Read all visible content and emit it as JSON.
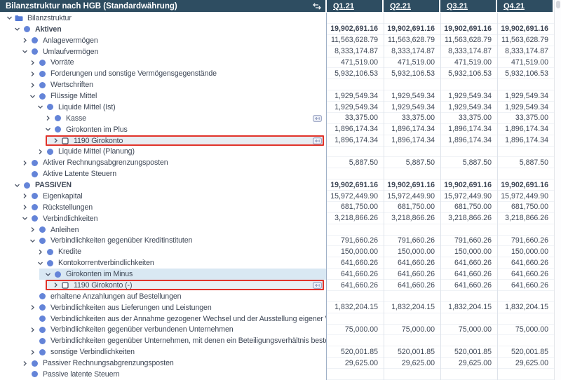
{
  "header": {
    "title": "Bilanzstruktur nach HGB (Standardwährung)",
    "sort_icon": "swap-columns-icon",
    "columns": [
      "Q1.21",
      "Q2.21",
      "Q3.21",
      "Q4.21"
    ]
  },
  "colors": {
    "header_bg": "#2e4d61",
    "tree_text": "#3e4756",
    "value_text": "#3e4756",
    "node_blue": "#6484d8",
    "folder_blue": "#5479d4",
    "chevron": "#4d5668",
    "col_sep_light": "#dee3ea",
    "tree_sep": "#9fb0c7",
    "row_line": "#eff2f6",
    "selection": "#d9e8f3",
    "marked_bg": "#e8edf2",
    "marker_red": "#e1332a",
    "badge_border": "#8a96ba",
    "badge_bg": "#f2f4fa",
    "scroll_thumb": "#d5d7dc",
    "scroll_border": "#e4e6ea"
  },
  "icons": {
    "folder": "folder-icon",
    "circle": "node-circle-icon",
    "square": "account-square-icon",
    "badge": "value-mapping-icon",
    "chevron_down": "chevron-down-icon",
    "chevron_right": "chevron-right-icon"
  },
  "rows": [
    {
      "label": "Bilanzstruktur",
      "level": 0,
      "chevron": "down",
      "icon": "folder",
      "values": [
        "",
        "",
        "",
        ""
      ]
    },
    {
      "label": "Aktiven",
      "level": 1,
      "chevron": "down",
      "icon": "circle",
      "bold": true,
      "values": [
        "19,902,691.16",
        "19,902,691.16",
        "19,902,691.16",
        "19,902,691.16"
      ]
    },
    {
      "label": "Anlagevermögen",
      "level": 2,
      "chevron": "right",
      "icon": "circle",
      "values": [
        "11,563,628.79",
        "11,563,628.79",
        "11,563,628.79",
        "11,563,628.79"
      ]
    },
    {
      "label": "Umlaufvermögen",
      "level": 2,
      "chevron": "down",
      "icon": "circle",
      "values": [
        "8,333,174.87",
        "8,333,174.87",
        "8,333,174.87",
        "8,333,174.87"
      ]
    },
    {
      "label": "Vorräte",
      "level": 3,
      "chevron": "right",
      "icon": "circle",
      "values": [
        "471,519.00",
        "471,519.00",
        "471,519.00",
        "471,519.00"
      ]
    },
    {
      "label": "Forderungen und sonstige Vermögensgegenstände",
      "level": 3,
      "chevron": "right",
      "icon": "circle",
      "values": [
        "5,932,106.53",
        "5,932,106.53",
        "5,932,106.53",
        "5,932,106.53"
      ]
    },
    {
      "label": "Wertschriften",
      "level": 3,
      "chevron": "right",
      "icon": "circle",
      "values": [
        "",
        "",
        "",
        ""
      ]
    },
    {
      "label": "Flüssige Mittel",
      "level": 3,
      "chevron": "down",
      "icon": "circle",
      "values": [
        "1,929,549.34",
        "1,929,549.34",
        "1,929,549.34",
        "1,929,549.34"
      ]
    },
    {
      "label": "Liquide Mittel (Ist)",
      "level": 4,
      "chevron": "down",
      "icon": "circle",
      "values": [
        "1,929,549.34",
        "1,929,549.34",
        "1,929,549.34",
        "1,929,549.34"
      ]
    },
    {
      "label": "Kasse",
      "level": 5,
      "chevron": "right",
      "icon": "circle",
      "badge": true,
      "values": [
        "33,375.00",
        "33,375.00",
        "33,375.00",
        "33,375.00"
      ]
    },
    {
      "label": "Girokonten im Plus",
      "level": 5,
      "chevron": "down",
      "icon": "circle",
      "values": [
        "1,896,174.34",
        "1,896,174.34",
        "1,896,174.34",
        "1,896,174.34"
      ]
    },
    {
      "label": "1190 Girokonto",
      "level": 6,
      "chevron": "right",
      "icon": "square",
      "badge": true,
      "redbox": true,
      "values": [
        "1,896,174.34",
        "1,896,174.34",
        "1,896,174.34",
        "1,896,174.34"
      ]
    },
    {
      "label": "Liquide Mittel (Planung)",
      "level": 4,
      "chevron": "right",
      "icon": "circle",
      "values": [
        "",
        "",
        "",
        ""
      ]
    },
    {
      "label": "Aktiver Rechnungsabgrenzungsposten",
      "level": 2,
      "chevron": "right",
      "icon": "circle",
      "values": [
        "5,887.50",
        "5,887.50",
        "5,887.50",
        "5,887.50"
      ]
    },
    {
      "label": "Aktive Latente Steuern",
      "level": 2,
      "chevron": "none",
      "icon": "circle",
      "values": [
        "",
        "",
        "",
        ""
      ]
    },
    {
      "label": "PASSIVEN",
      "level": 1,
      "chevron": "down",
      "icon": "circle",
      "bold": true,
      "values": [
        "19,902,691.16",
        "19,902,691.16",
        "19,902,691.16",
        "19,902,691.16"
      ]
    },
    {
      "label": "Eigenkapital",
      "level": 2,
      "chevron": "right",
      "icon": "circle",
      "values": [
        "15,972,449.90",
        "15,972,449.90",
        "15,972,449.90",
        "15,972,449.90"
      ]
    },
    {
      "label": "Rückstellungen",
      "level": 2,
      "chevron": "right",
      "icon": "circle",
      "values": [
        "681,750.00",
        "681,750.00",
        "681,750.00",
        "681,750.00"
      ]
    },
    {
      "label": "Verbindlichkeiten",
      "level": 2,
      "chevron": "down",
      "icon": "circle",
      "values": [
        "3,218,866.26",
        "3,218,866.26",
        "3,218,866.26",
        "3,218,866.26"
      ]
    },
    {
      "label": "Anleihen",
      "level": 3,
      "chevron": "right",
      "icon": "circle",
      "values": [
        "",
        "",
        "",
        ""
      ]
    },
    {
      "label": "Verbindlichkeiten gegenüber Kreditinstituten",
      "level": 3,
      "chevron": "down",
      "icon": "circle",
      "values": [
        "791,660.26",
        "791,660.26",
        "791,660.26",
        "791,660.26"
      ]
    },
    {
      "label": "Kredite",
      "level": 4,
      "chevron": "right",
      "icon": "circle",
      "values": [
        "150,000.00",
        "150,000.00",
        "150,000.00",
        "150,000.00"
      ]
    },
    {
      "label": "Kontokorrentverbindlichkeiten",
      "level": 4,
      "chevron": "down",
      "icon": "circle",
      "values": [
        "641,660.26",
        "641,660.26",
        "641,660.26",
        "641,660.26"
      ]
    },
    {
      "label": "Girokonten im Minus",
      "level": 5,
      "chevron": "down",
      "icon": "circle",
      "highlight": true,
      "values": [
        "641,660.26",
        "641,660.26",
        "641,660.26",
        "641,660.26"
      ]
    },
    {
      "label": "1190 Girokonto (-)",
      "level": 6,
      "chevron": "right",
      "icon": "square",
      "badge": true,
      "redbox": true,
      "values": [
        "641,660.26",
        "641,660.26",
        "641,660.26",
        "641,660.26"
      ]
    },
    {
      "label": "erhaltene Anzahlungen auf Bestellungen",
      "level": 3,
      "chevron": "none",
      "icon": "circle",
      "values": [
        "",
        "",
        "",
        ""
      ]
    },
    {
      "label": "Verbindlichkeiten aus Lieferungen und Leistungen",
      "level": 3,
      "chevron": "right",
      "icon": "circle",
      "values": [
        "1,832,204.15",
        "1,832,204.15",
        "1,832,204.15",
        "1,832,204.15"
      ]
    },
    {
      "label": "Verbindlichkeiten aus der Annahme gezogener Wechsel und der Ausstellung eigener Wechsel",
      "level": 3,
      "chevron": "none",
      "icon": "circle",
      "values": [
        "",
        "",
        "",
        ""
      ]
    },
    {
      "label": "Verbindlichkeiten gegenüber verbundenen Unternehmen",
      "level": 3,
      "chevron": "right",
      "icon": "circle",
      "values": [
        "75,000.00",
        "75,000.00",
        "75,000.00",
        "75,000.00"
      ]
    },
    {
      "label": "Verbindlichkeiten gegenüber Unternehmen, mit denen ein Beteiligungsverhältnis besteht",
      "level": 3,
      "chevron": "none",
      "icon": "circle",
      "values": [
        "",
        "",
        "",
        ""
      ]
    },
    {
      "label": "sonstige Verbindlichkeiten",
      "level": 3,
      "chevron": "right",
      "icon": "circle",
      "values": [
        "520,001.85",
        "520,001.85",
        "520,001.85",
        "520,001.85"
      ]
    },
    {
      "label": "Passiver Rechnungsabgrenzungsposten",
      "level": 2,
      "chevron": "right",
      "icon": "circle",
      "values": [
        "29,625.00",
        "29,625.00",
        "29,625.00",
        "29,625.00"
      ]
    },
    {
      "label": "Passive latente Steuern",
      "level": 2,
      "chevron": "none",
      "icon": "circle",
      "values": [
        "",
        "",
        "",
        ""
      ]
    }
  ]
}
